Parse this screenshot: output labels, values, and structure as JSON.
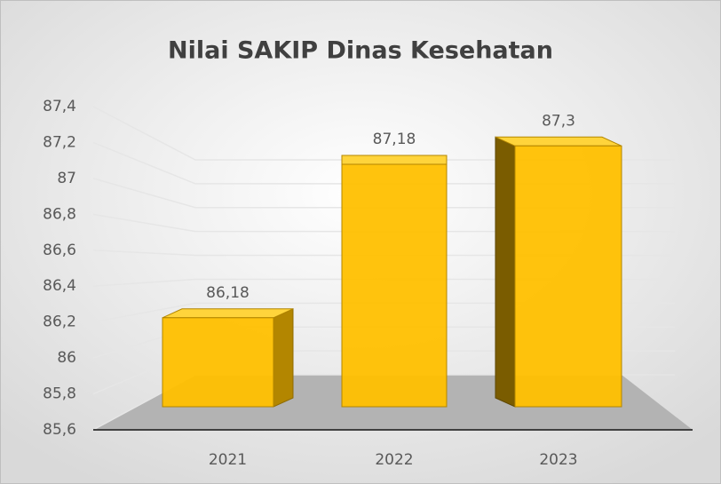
{
  "chart_data": {
    "type": "bar3d",
    "title": "Nilai SAKIP Dinas Kesehatan",
    "categories": [
      "2021",
      "2022",
      "2023"
    ],
    "values": [
      86.18,
      87.18,
      87.3
    ],
    "value_labels": [
      "86,18",
      "87,18",
      "87,3"
    ],
    "color": "#ffc000",
    "ylim": [
      85.6,
      87.4
    ],
    "yticks": [
      {
        "value": 85.6,
        "label": "85,6"
      },
      {
        "value": 85.8,
        "label": "85,8"
      },
      86,
      {
        "value": 86.2,
        "label": "86,2"
      },
      {
        "value": 86.4,
        "label": "86,4"
      },
      {
        "value": 86.6,
        "label": "86,6"
      },
      {
        "value": 86.8,
        "label": "86,8"
      },
      87,
      {
        "value": 87.2,
        "label": "87,2"
      },
      {
        "value": 87.4,
        "label": "87,4"
      }
    ],
    "grid": true
  }
}
